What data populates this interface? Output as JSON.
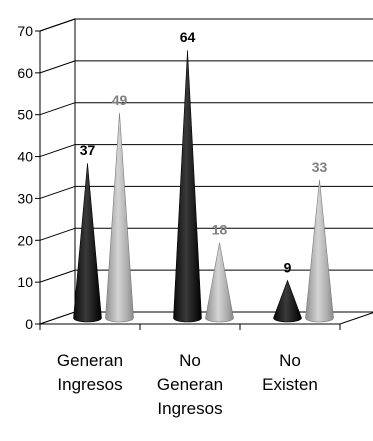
{
  "chart_data": {
    "type": "bar",
    "categories": [
      [
        "Generan",
        "Ingresos"
      ],
      [
        "No",
        "Generan",
        "Ingresos"
      ],
      [
        "No",
        "Existen"
      ]
    ],
    "series": [
      {
        "values": [
          37,
          64,
          9
        ],
        "color": "#1c1c1c",
        "label_color": "#000000"
      },
      {
        "values": [
          49,
          18,
          33
        ],
        "color": "#b4b4b4",
        "label_color": "#808080"
      }
    ],
    "ylim": [
      0,
      70
    ],
    "yticks": [
      0,
      10,
      20,
      30,
      40,
      50,
      60,
      70
    ],
    "grid": true,
    "style": "3d-cone"
  }
}
